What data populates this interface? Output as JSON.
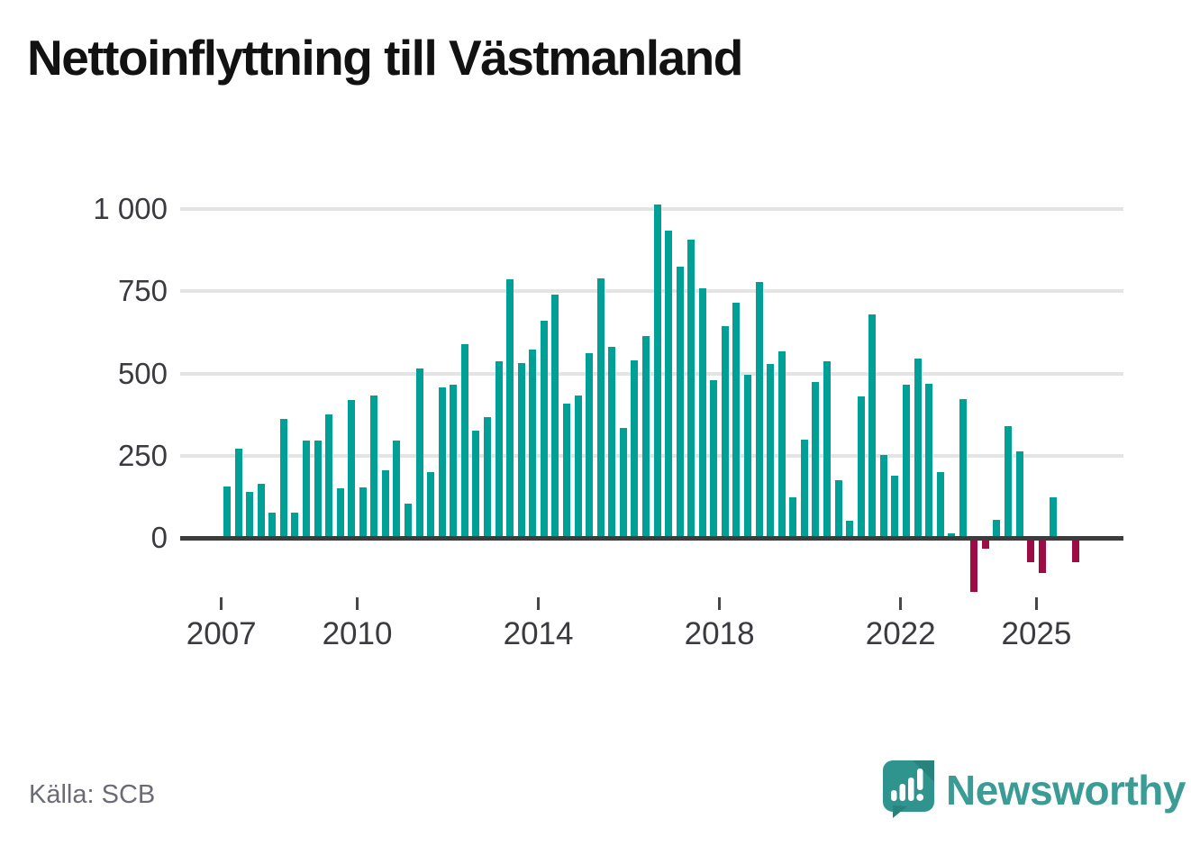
{
  "title": "Nettoinflyttning till Västmanland",
  "source_label": "Källa: SCB",
  "branding": {
    "name": "Newsworthy"
  },
  "colors": {
    "positive_bar": "#00A096",
    "negative_bar": "#9E0C46",
    "axis_line": "#3C3C3C",
    "gridline": "#E4E4E4",
    "tick_label": "#3A3A40",
    "title_text": "#121212",
    "source_text": "#6B6B75",
    "brand_teal": "#3B9C95"
  },
  "chart_data": {
    "type": "bar",
    "title": "Nettoinflyttning till Västmanland",
    "source": "SCB",
    "frequency": "quarterly",
    "start_period": "2007 Q1",
    "end_period": "2025 Q4",
    "y_axis": {
      "ticks": [
        0,
        250,
        500,
        750,
        1000
      ],
      "labels": [
        "0",
        "250",
        "500",
        "750",
        "1 000"
      ],
      "range_shown": [
        -170,
        1050
      ],
      "gridlines": true
    },
    "x_axis": {
      "start_year": 2007,
      "tick_years": [
        2007,
        2010,
        2014,
        2018,
        2022,
        2025
      ]
    },
    "values": [
      156,
      272,
      140,
      164,
      77,
      363,
      77,
      296,
      296,
      376,
      150,
      419,
      153,
      434,
      205,
      296,
      105,
      515,
      200,
      457,
      467,
      589,
      326,
      367,
      538,
      787,
      532,
      572,
      659,
      740,
      408,
      434,
      562,
      790,
      581,
      334,
      539,
      615,
      1015,
      935,
      825,
      908,
      758,
      480,
      644,
      714,
      495,
      778,
      528,
      566,
      124,
      299,
      474,
      536,
      175,
      53,
      430,
      679,
      252,
      190,
      466,
      545,
      469,
      200,
      13,
      422,
      -164,
      -34,
      54,
      339,
      263,
      -74,
      -108,
      124,
      0,
      -74
    ]
  }
}
